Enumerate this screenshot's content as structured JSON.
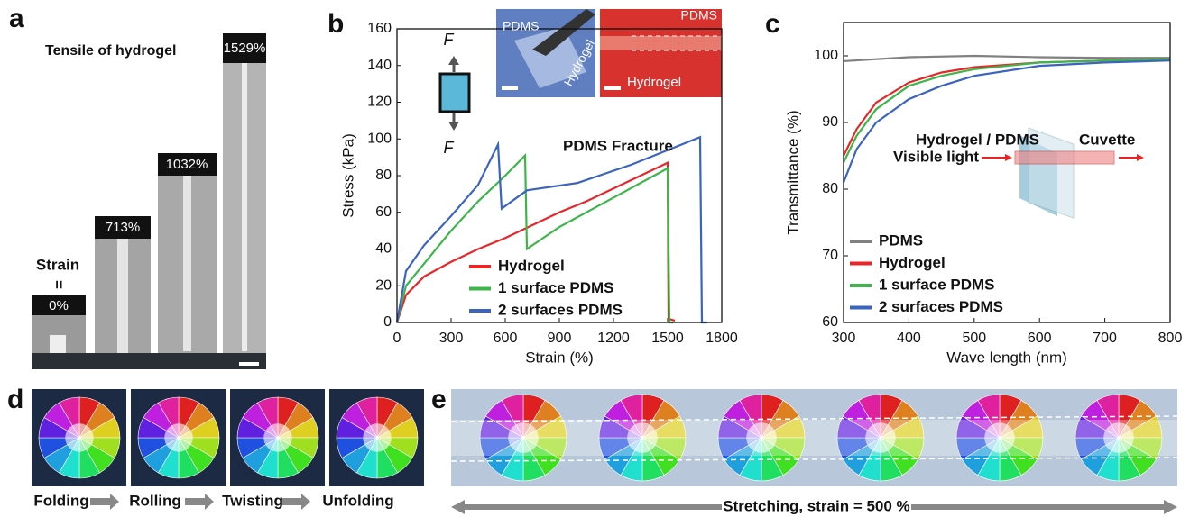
{
  "figure": {
    "panel_a": {
      "label": "a",
      "title": "Tensile of hydrogel",
      "strain_label": "Strain",
      "equals": "=",
      "strains": [
        "0%",
        "713%",
        "1032%",
        "1529%"
      ]
    },
    "panel_d": {
      "label": "d",
      "steps": [
        "Folding",
        "Rolling",
        "Twisting",
        "Unfolding"
      ]
    },
    "panel_e": {
      "label": "e",
      "caption": "Stretching, strain = 500 %"
    }
  },
  "chart_data": [
    {
      "type": "line",
      "panel": "b",
      "xlabel": "Strain (%)",
      "ylabel": "Stress (kPa)",
      "xlim": [
        0,
        1800
      ],
      "xticks": [
        0,
        300,
        600,
        900,
        1200,
        1500,
        1800
      ],
      "ylim": [
        0,
        160
      ],
      "yticks": [
        0,
        20,
        40,
        60,
        80,
        100,
        120,
        140,
        160
      ],
      "legend": "lower center",
      "annotations": {
        "fracture": "PDMS Fracture",
        "force_top": "F",
        "force_bottom": "F",
        "inset1_pdms": "PDMS",
        "inset1_hydrogel": "Hydrogel",
        "inset2_pdms": "PDMS",
        "inset2_hydrogel": "Hydrogel"
      },
      "series": [
        {
          "name": "Hydrogel",
          "color": "#e8262a",
          "x": [
            0,
            50,
            150,
            300,
            450,
            600,
            750,
            900,
            1050,
            1200,
            1350,
            1500,
            1505,
            1540
          ],
          "values": [
            0,
            15,
            25,
            33,
            40,
            46,
            53,
            60,
            66,
            73,
            80,
            87,
            2,
            1
          ]
        },
        {
          "name": "1 surface PDMS",
          "color": "#3db54a",
          "x": [
            0,
            50,
            150,
            300,
            450,
            600,
            710,
            720,
            900,
            1200,
            1500,
            1510,
            1530
          ],
          "values": [
            0,
            20,
            32,
            50,
            66,
            80,
            91,
            40,
            52,
            68,
            84,
            0,
            0
          ]
        },
        {
          "name": "2 surfaces PDMS",
          "color": "#3b63c0",
          "x": [
            0,
            50,
            150,
            300,
            450,
            560,
            580,
            720,
            1000,
            1300,
            1680,
            1690,
            1720
          ],
          "values": [
            0,
            28,
            42,
            58,
            75,
            97,
            62,
            72,
            76,
            86,
            101,
            0,
            0
          ]
        }
      ]
    },
    {
      "type": "line",
      "panel": "c",
      "xlabel": "Wave length (nm)",
      "ylabel": "Transmittance (%)",
      "xlim": [
        300,
        800
      ],
      "xticks": [
        300,
        400,
        500,
        600,
        700,
        800
      ],
      "ylim": [
        60,
        105
      ],
      "yticks": [
        60,
        70,
        80,
        90,
        100
      ],
      "legend": "lower left",
      "annotations": {
        "sample": "Hydrogel / PDMS",
        "cuvette": "Cuvette",
        "light": "Visible light"
      },
      "series": [
        {
          "name": "PDMS",
          "color": "#808080",
          "x": [
            300,
            350,
            400,
            500,
            600,
            700,
            800
          ],
          "values": [
            99.2,
            99.5,
            99.8,
            100,
            99.8,
            99.7,
            99.7
          ]
        },
        {
          "name": "Hydrogel",
          "color": "#e8262a",
          "x": [
            300,
            320,
            350,
            400,
            450,
            500,
            600,
            700,
            800
          ],
          "values": [
            85,
            89,
            93,
            96,
            97.5,
            98.3,
            99,
            99.3,
            99.5
          ]
        },
        {
          "name": "1 surface PDMS",
          "color": "#3db54a",
          "x": [
            300,
            320,
            350,
            400,
            450,
            500,
            600,
            700,
            800
          ],
          "values": [
            84,
            88,
            92,
            95.5,
            97,
            98,
            99,
            99.3,
            99.5
          ]
        },
        {
          "name": "2 surfaces PDMS",
          "color": "#3b63c0",
          "x": [
            300,
            320,
            350,
            400,
            450,
            500,
            600,
            700,
            800
          ],
          "values": [
            81,
            86,
            90,
            93.5,
            95.5,
            97,
            98.5,
            99,
            99.3
          ]
        }
      ]
    }
  ]
}
